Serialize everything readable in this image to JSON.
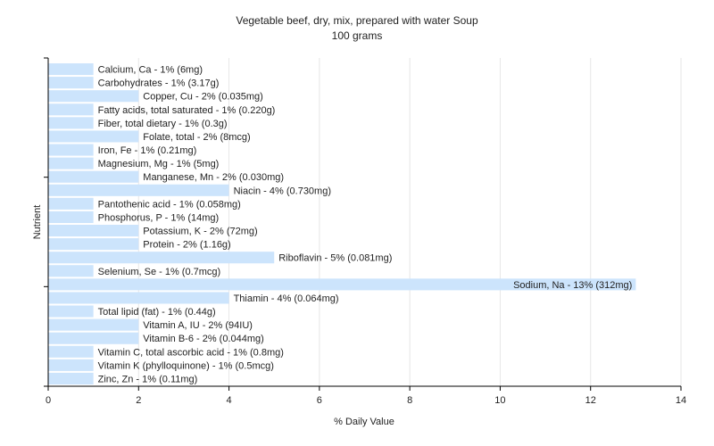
{
  "chart_data": {
    "type": "bar",
    "orientation": "horizontal",
    "title": "Vegetable beef, dry, mix, prepared with water Soup",
    "subtitle": "100 grams",
    "xlabel": "% Daily Value",
    "ylabel": "Nutrient",
    "xlim": [
      0,
      14
    ],
    "xticks": [
      0,
      2,
      4,
      6,
      8,
      10,
      12,
      14
    ],
    "grid": true,
    "bar_color": "#cce4fc",
    "categories": [
      "Calcium, Ca",
      "Carbohydrates",
      "Copper, Cu",
      "Fatty acids, total saturated",
      "Fiber, total dietary",
      "Folate, total",
      "Iron, Fe",
      "Magnesium, Mg",
      "Manganese, Mn",
      "Niacin",
      "Pantothenic acid",
      "Phosphorus, P",
      "Potassium, K",
      "Protein",
      "Riboflavin",
      "Selenium, Se",
      "Sodium, Na",
      "Thiamin",
      "Total lipid (fat)",
      "Vitamin A, IU",
      "Vitamin B-6",
      "Vitamin C, total ascorbic acid",
      "Vitamin K (phylloquinone)",
      "Zinc, Zn"
    ],
    "values": [
      1,
      1,
      2,
      1,
      1,
      2,
      1,
      1,
      2,
      4,
      1,
      1,
      2,
      2,
      5,
      1,
      13,
      4,
      1,
      2,
      2,
      1,
      1,
      1
    ],
    "labels": [
      "Calcium, Ca - 1% (6mg)",
      "Carbohydrates - 1% (3.17g)",
      "Copper, Cu - 2% (0.035mg)",
      "Fatty acids, total saturated - 1% (0.220g)",
      "Fiber, total dietary - 1% (0.3g)",
      "Folate, total - 2% (8mcg)",
      "Iron, Fe - 1% (0.21mg)",
      "Magnesium, Mg - 1% (5mg)",
      "Manganese, Mn - 2% (0.030mg)",
      "Niacin - 4% (0.730mg)",
      "Pantothenic acid - 1% (0.058mg)",
      "Phosphorus, P - 1% (14mg)",
      "Potassium, K - 2% (72mg)",
      "Protein - 2% (1.16g)",
      "Riboflavin - 5% (0.081mg)",
      "Selenium, Se - 1% (0.7mcg)",
      "Sodium, Na - 13% (312mg)",
      "Thiamin - 4% (0.064mg)",
      "Total lipid (fat) - 1% (0.44g)",
      "Vitamin A, IU - 2% (94IU)",
      "Vitamin B-6 - 2% (0.044mg)",
      "Vitamin C, total ascorbic acid - 1% (0.8mg)",
      "Vitamin K (phylloquinone) - 1% (0.5mcg)",
      "Zinc, Zn - 1% (0.11mg)"
    ]
  }
}
